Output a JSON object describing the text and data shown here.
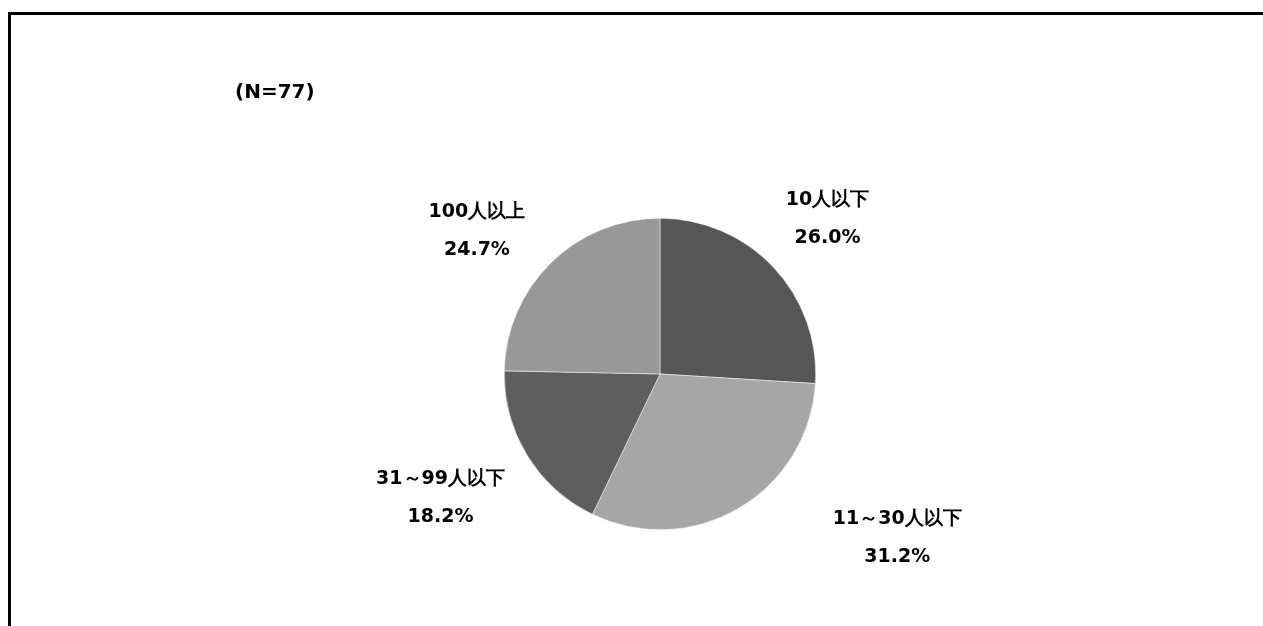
{
  "chart_data": {
    "type": "pie",
    "title": "(N=77)",
    "categories": [
      "10人以下",
      "11～30人以下",
      "31～99人以下",
      "100人以上"
    ],
    "values": [
      26.0,
      31.2,
      18.2,
      24.7
    ],
    "colors": [
      "#565656",
      "#a6a6a6",
      "#5e5e5e",
      "#989898"
    ],
    "value_labels": [
      "26.0%",
      "31.2%",
      "18.2%",
      "24.7%"
    ]
  }
}
